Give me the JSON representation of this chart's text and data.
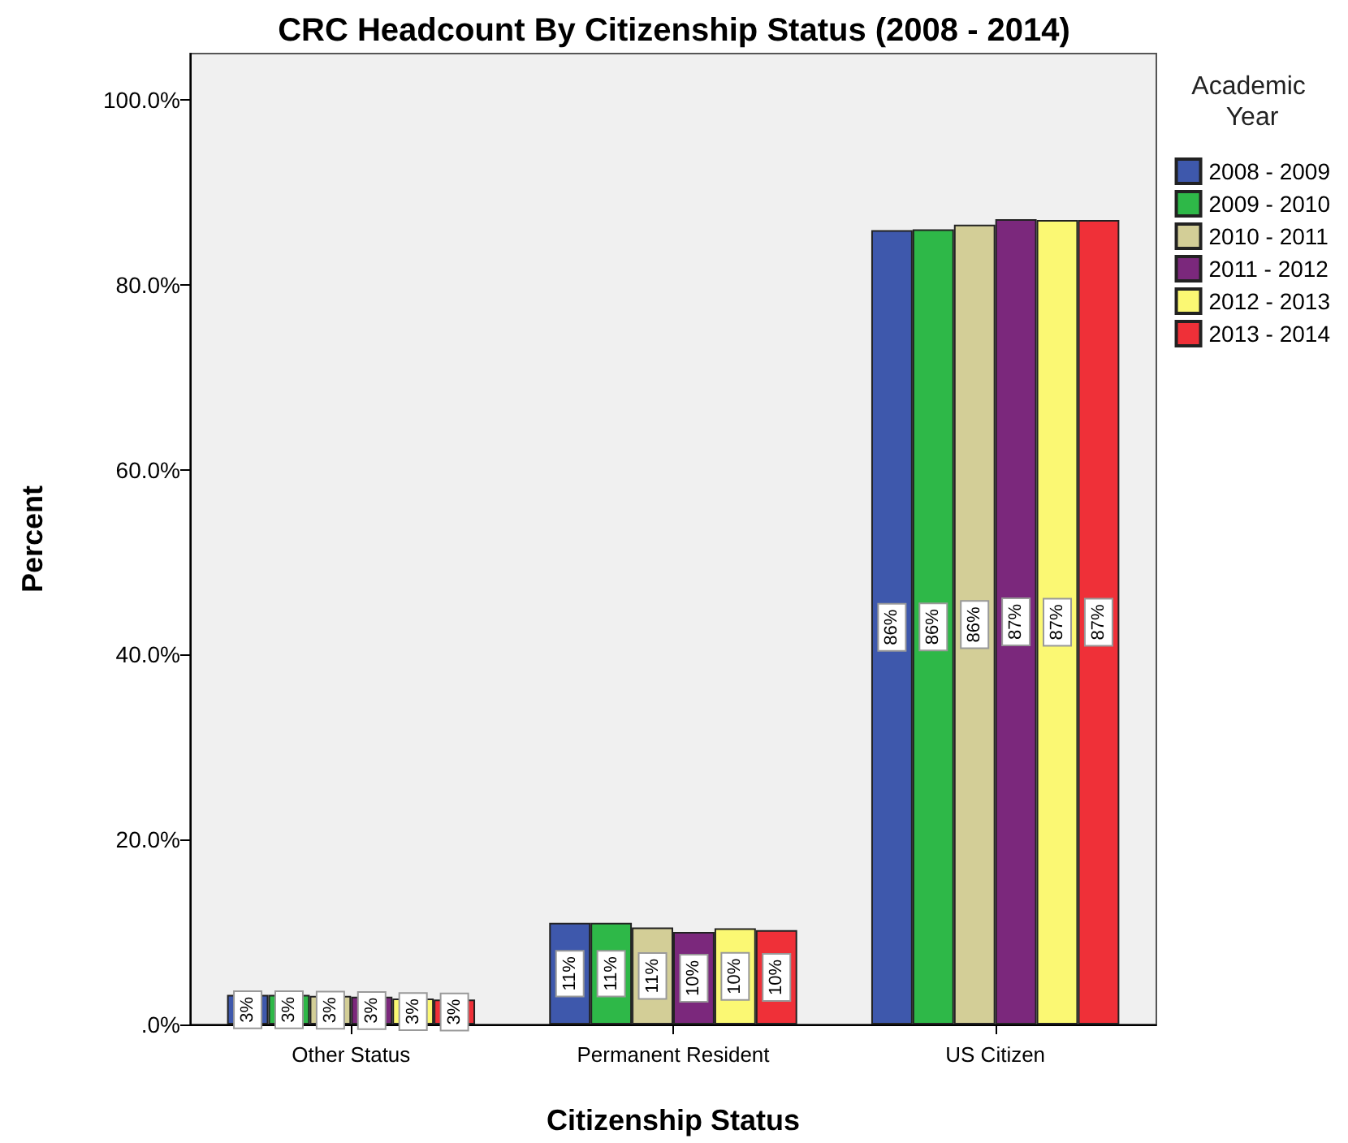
{
  "chart_data": {
    "type": "bar",
    "title": "CRC Headcount By Citizenship Status (2008 - 2014)",
    "xlabel": "Citizenship Status",
    "ylabel": "Percent",
    "legend_title": "Academic Year",
    "legend": "right",
    "categories": [
      "Other Status",
      "Permanent Resident",
      "US Citizen"
    ],
    "series": [
      {
        "name": "2008 - 2009",
        "color": "#3e58ac",
        "values": [
          3.2,
          11.0,
          85.9
        ],
        "value_labels": [
          "3%",
          "11%",
          "86%"
        ]
      },
      {
        "name": "2009 - 2010",
        "color": "#2eb848",
        "values": [
          3.2,
          11.0,
          86.0
        ],
        "value_labels": [
          "3%",
          "11%",
          "86%"
        ]
      },
      {
        "name": "2010 - 2011",
        "color": "#d3ce97",
        "values": [
          3.1,
          10.5,
          86.5
        ],
        "value_labels": [
          "3%",
          "11%",
          "86%"
        ]
      },
      {
        "name": "2011 - 2012",
        "color": "#7b287c",
        "values": [
          3.0,
          10.0,
          87.1
        ],
        "value_labels": [
          "3%",
          "10%",
          "87%"
        ]
      },
      {
        "name": "2012 - 2013",
        "color": "#fbf873",
        "values": [
          2.8,
          10.4,
          87.0
        ],
        "value_labels": [
          "3%",
          "10%",
          "87%"
        ]
      },
      {
        "name": "2013 - 2014",
        "color": "#ef3038",
        "values": [
          2.7,
          10.2,
          87.0
        ],
        "value_labels": [
          "3%",
          "10%",
          "87%"
        ]
      }
    ],
    "ylim": [
      0,
      105
    ],
    "yticks": [
      {
        "value": 0,
        "label": ".0%"
      },
      {
        "value": 20,
        "label": "20.0%"
      },
      {
        "value": 40,
        "label": "40.0%"
      },
      {
        "value": 60,
        "label": "60.0%"
      },
      {
        "value": 80,
        "label": "80.0%"
      },
      {
        "value": 100,
        "label": "100.0%"
      }
    ]
  }
}
